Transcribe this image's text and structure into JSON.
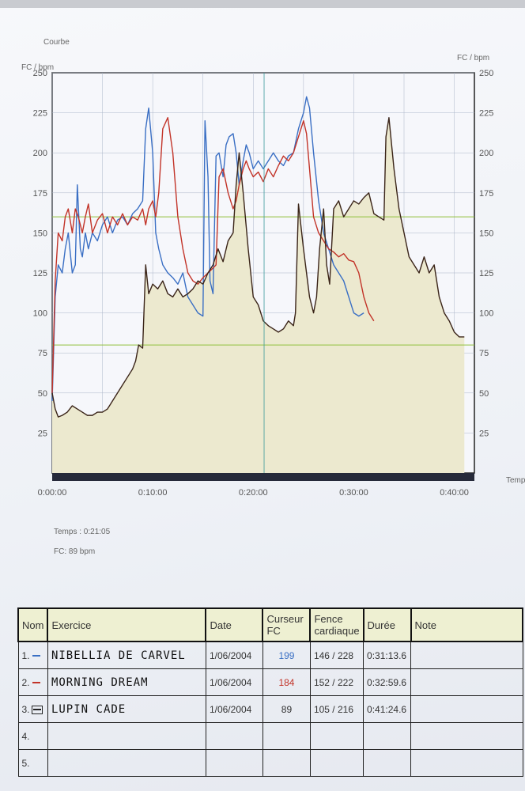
{
  "header": {
    "title": "Courbe",
    "y_left_label": "FC / bpm",
    "y_right_label": "FC / bpm",
    "x_label": "Temps"
  },
  "cursor_info": {
    "time": "Temps : 0:21:05",
    "fc": "FC: 89 bpm"
  },
  "colors": {
    "blue": "#3a6fc4",
    "red": "#c23328",
    "dark": "#3a2418",
    "fill": "#ece9cf",
    "grid": "#aab4c8",
    "limit": "#8fbf3a"
  },
  "chart_data": {
    "type": "line",
    "title": "Courbe",
    "xlabel": "Temps",
    "ylabel": "FC / bpm",
    "xlim": [
      0,
      42
    ],
    "ylim": [
      0,
      250
    ],
    "x_ticks": [
      "0:00:00",
      "0:10:00",
      "0:20:00",
      "0:30:00",
      "0:40:00"
    ],
    "y_ticks_left": [
      "250",
      "225",
      "200",
      "175",
      "150",
      "125",
      "100",
      "75",
      "50",
      "25"
    ],
    "y_ticks_right": [
      "250",
      "225",
      "200",
      "175",
      "150",
      "125",
      "100",
      "75",
      "50",
      "25"
    ],
    "limits": [
      160,
      80
    ],
    "cursor_x": 21.08,
    "series": [
      {
        "color": "blue",
        "x": [
          0,
          0.3,
          0.6,
          1,
          1.3,
          1.6,
          2,
          2.3,
          2.5,
          2.8,
          3,
          3.3,
          3.6,
          4,
          4.5,
          5,
          5.5,
          6,
          6.5,
          7,
          7.5,
          8,
          8.5,
          9,
          9.3,
          9.6,
          10,
          10.3,
          10.6,
          11,
          11.5,
          12,
          12.5,
          13,
          13.5,
          14,
          14.5,
          15,
          15.2,
          15.5,
          15.7,
          16,
          16.3,
          16.6,
          17,
          17.3,
          17.6,
          18,
          18.3,
          18.6,
          19,
          19.3,
          19.6,
          20,
          20.5,
          21,
          21.5,
          22,
          22.5,
          23,
          23.5,
          24,
          24.5,
          25,
          25.3,
          25.6,
          26,
          26.5,
          27,
          27.5,
          28,
          28.5,
          29,
          29.5,
          30,
          30.5,
          31
        ],
        "y": [
          45,
          110,
          130,
          125,
          140,
          150,
          125,
          130,
          180,
          140,
          135,
          150,
          140,
          150,
          145,
          155,
          160,
          150,
          158,
          160,
          155,
          162,
          165,
          170,
          215,
          228,
          200,
          150,
          140,
          130,
          125,
          122,
          118,
          125,
          110,
          105,
          100,
          98,
          220,
          185,
          120,
          112,
          198,
          200,
          185,
          205,
          210,
          212,
          200,
          180,
          195,
          205,
          200,
          190,
          195,
          190,
          195,
          200,
          195,
          192,
          198,
          200,
          215,
          225,
          235,
          228,
          200,
          170,
          150,
          140,
          130,
          125,
          120,
          110,
          100,
          98,
          100
        ]
      },
      {
        "color": "red",
        "x": [
          0,
          0.3,
          0.6,
          1,
          1.3,
          1.6,
          2,
          2.3,
          2.6,
          3,
          3.3,
          3.6,
          4,
          4.5,
          5,
          5.5,
          6,
          6.5,
          7,
          7.5,
          8,
          8.5,
          9,
          9.3,
          9.6,
          10,
          10.3,
          10.6,
          11,
          11.5,
          12,
          12.5,
          13,
          13.5,
          14,
          14.5,
          15,
          15.5,
          16,
          16.3,
          16.6,
          17,
          17.5,
          18,
          18.3,
          18.6,
          19,
          19.3,
          19.6,
          20,
          20.5,
          21,
          21.5,
          22,
          22.5,
          23,
          23.5,
          24,
          24.5,
          25,
          25.3,
          25.6,
          26,
          26.5,
          27,
          27.5,
          28,
          28.5,
          29,
          29.5,
          30,
          30.5,
          31,
          31.5,
          32
        ],
        "y": [
          50,
          120,
          150,
          145,
          160,
          165,
          150,
          165,
          160,
          150,
          160,
          168,
          150,
          158,
          162,
          150,
          160,
          155,
          162,
          155,
          160,
          158,
          165,
          155,
          165,
          170,
          160,
          175,
          215,
          222,
          200,
          160,
          140,
          125,
          120,
          118,
          122,
          125,
          128,
          130,
          185,
          190,
          175,
          165,
          170,
          180,
          190,
          195,
          190,
          185,
          188,
          182,
          190,
          185,
          192,
          198,
          195,
          200,
          210,
          220,
          212,
          190,
          160,
          150,
          145,
          140,
          138,
          135,
          137,
          133,
          132,
          125,
          110,
          100,
          95
        ]
      },
      {
        "color": "dark",
        "x": [
          0,
          0.3,
          0.6,
          1,
          1.5,
          2,
          2.5,
          3,
          3.5,
          4,
          4.5,
          5,
          5.5,
          6,
          6.5,
          7,
          7.5,
          8,
          8.3,
          8.6,
          9,
          9.3,
          9.6,
          10,
          10.5,
          11,
          11.5,
          12,
          12.5,
          13,
          13.5,
          14,
          14.5,
          15,
          15.5,
          16,
          16.5,
          17,
          17.5,
          18,
          18.3,
          18.6,
          19,
          19.5,
          20,
          20.5,
          21,
          21.5,
          22,
          22.5,
          23,
          23.5,
          24,
          24.2,
          24.5,
          25,
          25.3,
          25.6,
          26,
          26.3,
          26.6,
          27,
          27.3,
          27.6,
          28,
          28.5,
          29,
          29.5,
          30,
          30.5,
          31,
          31.5,
          32,
          32.5,
          33,
          33.2,
          33.5,
          34,
          34.5,
          35,
          35.5,
          36,
          36.5,
          37,
          37.5,
          38,
          38.5,
          39,
          39.5,
          40,
          40.5,
          41
        ],
        "y": [
          50,
          40,
          35,
          36,
          38,
          42,
          40,
          38,
          36,
          36,
          38,
          38,
          40,
          45,
          50,
          55,
          60,
          65,
          70,
          80,
          78,
          130,
          112,
          118,
          115,
          120,
          112,
          110,
          115,
          110,
          112,
          115,
          120,
          118,
          125,
          130,
          140,
          132,
          145,
          150,
          180,
          200,
          175,
          140,
          110,
          105,
          95,
          92,
          90,
          88,
          90,
          95,
          92,
          100,
          168,
          140,
          125,
          110,
          100,
          110,
          140,
          165,
          130,
          118,
          165,
          170,
          160,
          165,
          170,
          168,
          172,
          175,
          162,
          160,
          158,
          210,
          222,
          190,
          165,
          150,
          135,
          130,
          125,
          135,
          125,
          130,
          110,
          100,
          95,
          88,
          85,
          85
        ]
      }
    ]
  },
  "table": {
    "headers": [
      "Nom",
      "Exercice",
      "Date",
      "Curseur FC",
      "Fence cardiaque",
      "Durée",
      "Note"
    ],
    "rows": [
      {
        "num": "1.",
        "mark": "blue",
        "name": "NIBELLIA DE CARVEL",
        "date": "1/06/2004",
        "cursor": "199",
        "fc": "146 / 228",
        "duree": "0:31:13.6",
        "note": ""
      },
      {
        "num": "2.",
        "mark": "red",
        "name": "MORNING DREAM",
        "date": "1/06/2004",
        "cursor": "184",
        "fc": "152 / 222",
        "duree": "0:32:59.6",
        "note": ""
      },
      {
        "num": "3.",
        "mark": "box",
        "name": "LUPIN CADE",
        "date": "1/06/2004",
        "cursor": "89",
        "fc": "105 / 216",
        "duree": "0:41:24.6",
        "note": ""
      },
      {
        "num": "4.",
        "mark": "",
        "name": "",
        "date": "",
        "cursor": "",
        "fc": "",
        "duree": "",
        "note": ""
      },
      {
        "num": "5.",
        "mark": "",
        "name": "",
        "date": "",
        "cursor": "",
        "fc": "",
        "duree": "",
        "note": ""
      }
    ]
  }
}
